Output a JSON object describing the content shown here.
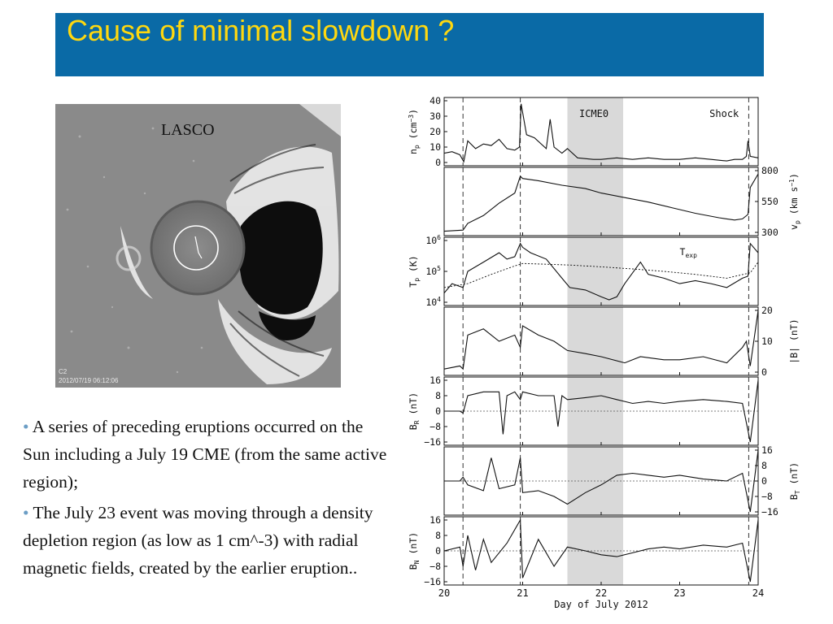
{
  "slide": {
    "title": "Cause of minimal slowdown ?",
    "colors": {
      "title_bar": "#0a6aa6",
      "title_text": "#ffd80f",
      "bullet_dot": "#6c9ec5"
    }
  },
  "lasco_image": {
    "label": "LASCO",
    "corner_code": "C2",
    "timestamp": "2012/07/19 06:12:06"
  },
  "bullets": [
    {
      "marker": "•",
      "text": "A series of preceding eruptions occurred on the Sun including a July 19 CME (from the same active region);"
    },
    {
      "marker": "•",
      "text": "The July 23 event was moving through a density depletion region (as low as 1 cm^-3) with radial magnetic fields, created by the earlier eruption.."
    }
  ],
  "chart_data": {
    "type": "line",
    "xlabel": "Day of July 2012",
    "xlim": [
      20,
      24
    ],
    "x_ticks": [
      "20",
      "21",
      "22",
      "23",
      "24"
    ],
    "shaded_interval": {
      "label": "ICME0",
      "x": [
        21.57,
        22.28
      ]
    },
    "dashed_markers": [
      20.24,
      20.97,
      23.88
    ],
    "annotations": [
      {
        "text": "Shock"
      },
      {
        "text": "ICME0"
      },
      {
        "text": "T",
        "sub": "exp"
      }
    ],
    "panels": [
      {
        "id": "np",
        "ylabel_main": "n",
        "ylabel_sub": "p",
        "ylabel_unit": " (cm",
        "ylabel_sup": "−3",
        "ylabel_close": ")",
        "ylim": [
          0,
          40
        ],
        "yticks": [
          "40",
          "30",
          "20",
          "10",
          "0"
        ],
        "tick_side": "left",
        "x": [
          20.0,
          20.1,
          20.2,
          20.25,
          20.3,
          20.4,
          20.5,
          20.6,
          20.7,
          20.8,
          20.9,
          20.96,
          20.98,
          21.05,
          21.15,
          21.3,
          21.35,
          21.4,
          21.5,
          21.57,
          21.7,
          21.9,
          22.0,
          22.2,
          22.4,
          22.6,
          22.8,
          23.0,
          23.2,
          23.4,
          23.6,
          23.7,
          23.8,
          23.85,
          23.87,
          23.9,
          24.0
        ],
        "y": [
          6,
          7,
          5,
          0.5,
          14,
          9,
          12,
          11,
          15,
          9,
          8,
          10,
          38,
          18,
          16,
          9,
          28,
          10,
          6,
          9,
          3,
          2,
          2,
          3,
          2,
          3,
          2,
          2,
          3,
          2,
          1,
          2,
          2,
          4,
          14,
          4,
          3
        ]
      },
      {
        "id": "vp",
        "ylabel_main": "v",
        "ylabel_sub": "p",
        "ylabel_unit": " (km s",
        "ylabel_sup": "−1",
        "ylabel_close": ")",
        "ylim": [
          300,
          850
        ],
        "yticks": [
          "800",
          "550",
          "300"
        ],
        "tick_side": "right",
        "x": [
          20.0,
          20.24,
          20.3,
          20.5,
          20.7,
          20.9,
          20.97,
          21.0,
          21.2,
          21.5,
          21.8,
          22.0,
          22.3,
          22.6,
          22.9,
          23.2,
          23.5,
          23.7,
          23.8,
          23.87,
          23.9,
          24.0
        ],
        "y": [
          310,
          320,
          380,
          450,
          560,
          650,
          800,
          780,
          760,
          720,
          690,
          650,
          610,
          570,
          520,
          470,
          430,
          410,
          420,
          460,
          700,
          820
        ]
      },
      {
        "id": "Tp",
        "ylabel_main": "T",
        "ylabel_sub": "p",
        "ylabel_unit": " (K)",
        "yscale": "log",
        "ylim": [
          10000,
          1000000
        ],
        "yticks": [
          {
            "base": "10",
            "exp": "6"
          },
          {
            "base": "10",
            "exp": "5"
          },
          {
            "base": "10",
            "exp": "4"
          }
        ],
        "tick_side": "left",
        "series": [
          {
            "name": "T_p",
            "x": [
              20.0,
              20.1,
              20.24,
              20.3,
              20.5,
              20.7,
              20.8,
              20.9,
              20.97,
              21.0,
              21.1,
              21.3,
              21.5,
              21.6,
              21.8,
              22.0,
              22.1,
              22.2,
              22.3,
              22.5,
              22.6,
              22.8,
              23.0,
              23.2,
              23.4,
              23.6,
              23.8,
              23.87,
              23.9,
              24.0
            ],
            "y": [
              20000,
              40000,
              30000,
              100000,
              200000,
              400000,
              250000,
              300000,
              800000,
              600000,
              400000,
              250000,
              60000,
              30000,
              25000,
              15000,
              12000,
              15000,
              40000,
              200000,
              80000,
              60000,
              40000,
              50000,
              40000,
              30000,
              60000,
              70000,
              800000,
              400000
            ]
          },
          {
            "name": "T_exp",
            "x": [
              20.0,
              20.3,
              20.6,
              20.9,
              21.0,
              21.3,
              21.6,
              22.0,
              22.4,
              22.8,
              23.2,
              23.6,
              23.9,
              24.0
            ],
            "y": [
              30000,
              40000,
              80000,
              150000,
              180000,
              170000,
              160000,
              140000,
              120000,
              100000,
              80000,
              60000,
              90000,
              200000
            ]
          }
        ]
      },
      {
        "id": "B",
        "ylabel_main": "|B| (nT)",
        "ylim": [
          0,
          20
        ],
        "yticks": [
          "20",
          "10",
          "0"
        ],
        "tick_side": "right",
        "x": [
          20.0,
          20.2,
          20.24,
          20.3,
          20.5,
          20.7,
          20.9,
          20.97,
          21.0,
          21.2,
          21.4,
          21.57,
          21.8,
          22.0,
          22.3,
          22.5,
          22.8,
          23.0,
          23.3,
          23.6,
          23.8,
          23.85,
          23.9,
          24.0
        ],
        "y": [
          1,
          2,
          1,
          12,
          14,
          10,
          12,
          8,
          15,
          12,
          10,
          7,
          6,
          5,
          3,
          5,
          4,
          4,
          5,
          3,
          8,
          10,
          2,
          20
        ]
      },
      {
        "id": "BR",
        "ylabel_main": "B",
        "ylabel_sub": "R",
        "ylabel_unit": " (nT)",
        "ylim": [
          -16,
          16
        ],
        "yticks": [
          "16",
          "8",
          "0",
          "−8",
          "−16"
        ],
        "tick_side": "left",
        "zero_line": true,
        "x": [
          20.0,
          20.2,
          20.24,
          20.3,
          20.5,
          20.7,
          20.75,
          20.8,
          20.9,
          20.97,
          21.0,
          21.2,
          21.4,
          21.45,
          21.5,
          21.57,
          21.8,
          22.0,
          22.2,
          22.4,
          22.6,
          22.8,
          23.0,
          23.3,
          23.6,
          23.8,
          23.9,
          24.0
        ],
        "y": [
          0,
          0,
          -1,
          8,
          10,
          10,
          -12,
          8,
          10,
          6,
          10,
          8,
          8,
          -8,
          8,
          6,
          7,
          8,
          6,
          4,
          5,
          4,
          5,
          6,
          5,
          4,
          -16,
          16
        ]
      },
      {
        "id": "BT",
        "ylabel_main": "B",
        "ylabel_sub": "T",
        "ylabel_unit": " (nT)",
        "ylim": [
          -16,
          16
        ],
        "yticks": [
          "16",
          "8",
          "0",
          "−8",
          "−16"
        ],
        "tick_side": "right",
        "zero_line": true,
        "x": [
          20.0,
          20.2,
          20.24,
          20.3,
          20.5,
          20.6,
          20.7,
          20.9,
          20.97,
          21.0,
          21.2,
          21.4,
          21.57,
          21.8,
          22.0,
          22.2,
          22.4,
          22.6,
          22.8,
          23.0,
          23.3,
          23.6,
          23.8,
          23.9,
          24.0
        ],
        "y": [
          0,
          0,
          2,
          -2,
          -5,
          12,
          -4,
          -2,
          12,
          -6,
          -5,
          -8,
          -12,
          -6,
          -2,
          3,
          4,
          3,
          2,
          3,
          1,
          0,
          4,
          -16,
          16
        ]
      },
      {
        "id": "BN",
        "ylabel_main": "B",
        "ylabel_sub": "N",
        "ylabel_unit": " (nT)",
        "ylim": [
          -16,
          16
        ],
        "yticks": [
          "16",
          "8",
          "0",
          "−8",
          "−16"
        ],
        "tick_side": "left",
        "zero_line": true,
        "x": [
          20.0,
          20.2,
          20.24,
          20.3,
          20.4,
          20.5,
          20.6,
          20.8,
          20.97,
          21.0,
          21.2,
          21.4,
          21.57,
          21.8,
          22.0,
          22.2,
          22.4,
          22.6,
          22.8,
          23.0,
          23.3,
          23.6,
          23.8,
          23.9,
          24.0
        ],
        "y": [
          0,
          2,
          -8,
          8,
          -10,
          6,
          -6,
          4,
          16,
          -14,
          6,
          -8,
          2,
          0,
          -2,
          -3,
          -1,
          1,
          2,
          1,
          3,
          2,
          4,
          -16,
          16
        ]
      }
    ]
  }
}
